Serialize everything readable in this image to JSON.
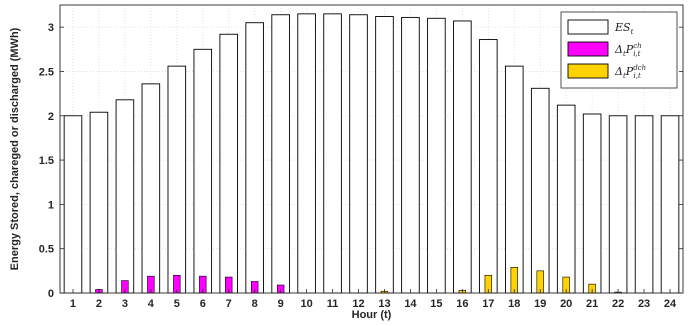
{
  "chart_data": {
    "type": "bar",
    "title": "",
    "xlabel": "Hour (t)",
    "ylabel": "Energy Stored, chareged or discharged (MWh)",
    "ylim": [
      0,
      3.25
    ],
    "yticks": [
      "0",
      "0.5",
      "1",
      "1.5",
      "2",
      "2.5",
      "3"
    ],
    "categories": [
      "1",
      "2",
      "3",
      "4",
      "5",
      "6",
      "7",
      "8",
      "9",
      "10",
      "11",
      "12",
      "13",
      "14",
      "15",
      "16",
      "17",
      "18",
      "19",
      "20",
      "21",
      "22",
      "23",
      "24"
    ],
    "grid": true,
    "legend_position": "top-right",
    "series": [
      {
        "name": "ES_t",
        "legend_main": "ES",
        "legend_sub": "t",
        "color": "#ffffff",
        "values": [
          2.0,
          2.04,
          2.18,
          2.36,
          2.56,
          2.75,
          2.92,
          3.05,
          3.14,
          3.15,
          3.15,
          3.14,
          3.12,
          3.11,
          3.1,
          3.07,
          2.86,
          2.56,
          2.31,
          2.12,
          2.02,
          2.0,
          2.0,
          2.0
        ]
      },
      {
        "name": "Δ_t P^ch_i,t",
        "legend_main": "Δ",
        "legend_sub": "t",
        "legend_p": "P",
        "legend_sup": "ch",
        "legend_sub2": "i,t",
        "color": "#ff00ff",
        "values": [
          0.0,
          0.04,
          0.14,
          0.19,
          0.2,
          0.19,
          0.18,
          0.13,
          0.09,
          0.0,
          0.0,
          0.0,
          0.0,
          0.0,
          0.0,
          0.0,
          0.0,
          0.0,
          0.0,
          0.0,
          0.0,
          0.0,
          0.0,
          0.0
        ]
      },
      {
        "name": "Δ_t P^dch_i,t",
        "legend_main": "Δ",
        "legend_sub": "t",
        "legend_p": "P",
        "legend_sup": "dch",
        "legend_sub2": "i,t",
        "color": "#ffd200",
        "values": [
          0.0,
          0.0,
          0.0,
          0.0,
          0.0,
          0.0,
          0.0,
          0.0,
          0.0,
          0.0,
          0.0,
          0.0,
          0.02,
          0.0,
          0.0,
          0.03,
          0.2,
          0.29,
          0.25,
          0.18,
          0.1,
          0.01,
          0.0,
          0.0
        ]
      }
    ]
  }
}
